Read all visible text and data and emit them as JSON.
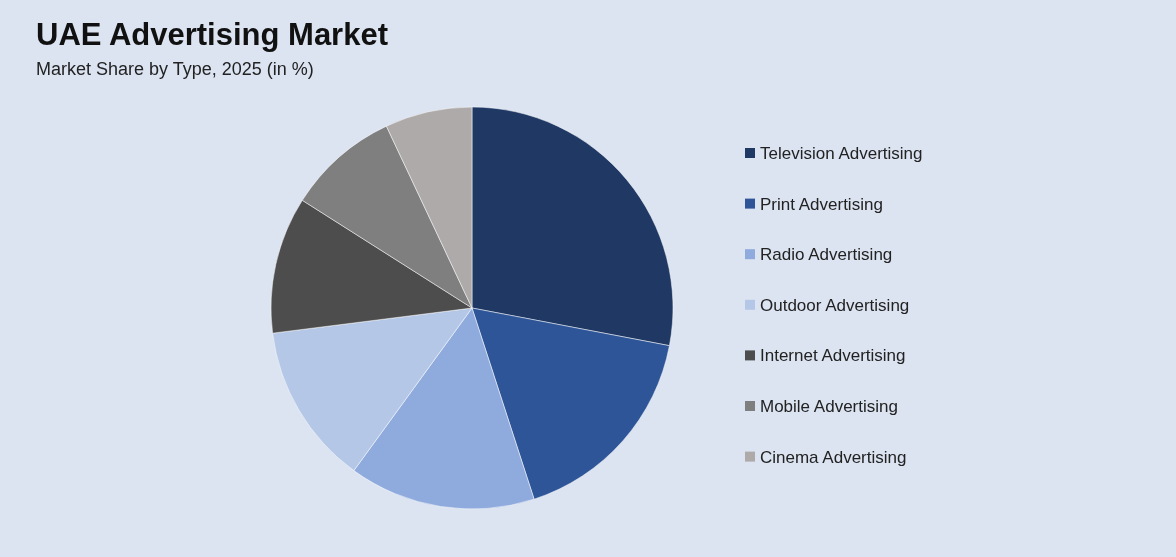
{
  "chart_data": {
    "type": "pie",
    "title": "UAE Advertising Market",
    "subtitle": "Market Share by Type, 2025 (in %)",
    "categories": [
      "Television Advertising",
      "Print Advertising",
      "Radio Advertising",
      "Outdoor Advertising",
      "Internet Advertising",
      "Mobile Advertising",
      "Cinema Advertising"
    ],
    "values": [
      28,
      17,
      15,
      13,
      11,
      9,
      7
    ],
    "colors": [
      "#1f3864",
      "#2e5597",
      "#8faadc",
      "#b4c7e7",
      "#4d4d4d",
      "#7f7f7f",
      "#aeaaaa"
    ],
    "legend": "right"
  }
}
